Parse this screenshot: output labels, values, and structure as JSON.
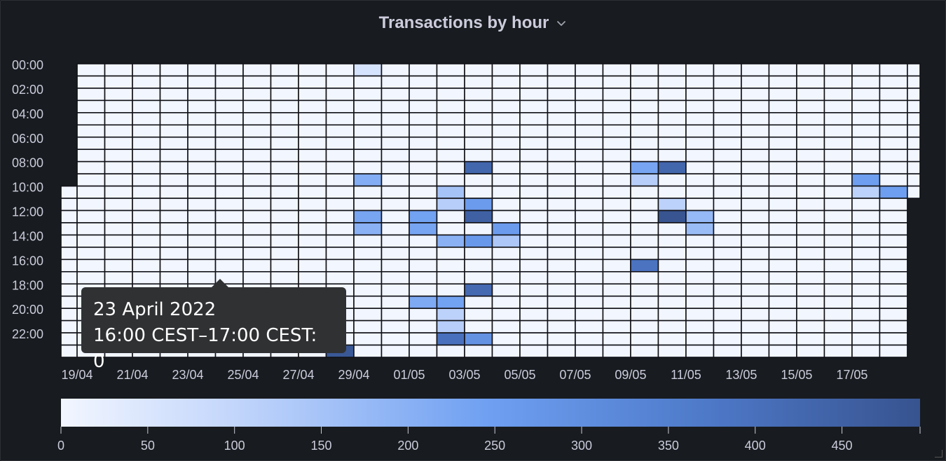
{
  "panel": {
    "title": "Transactions by hour",
    "menu_icon": "chevron-down-icon"
  },
  "tooltip": {
    "date": "23 April 2022",
    "range": "16:00 CEST–17:00 CEST: 0"
  },
  "colors": {
    "background": "#181b1f",
    "grid_line": "#111217",
    "scale_low": "#f2f6ff",
    "scale_mid": "#6e9ff1",
    "scale_high": "#37538f"
  },
  "chart_data": {
    "type": "heatmap",
    "title": "Transactions by hour",
    "y_tick_labels": [
      "00:00",
      "02:00",
      "04:00",
      "06:00",
      "08:00",
      "10:00",
      "12:00",
      "14:00",
      "16:00",
      "18:00",
      "20:00",
      "22:00"
    ],
    "x_tick_labels": [
      "19/04",
      "21/04",
      "23/04",
      "25/04",
      "27/04",
      "29/04",
      "01/05",
      "03/05",
      "05/05",
      "07/05",
      "09/05",
      "11/05",
      "13/05",
      "15/05",
      "17/05"
    ],
    "x_start": "2022-04-18T10:00",
    "x_end": "2022-05-19T11:00",
    "bucket": "1 hour per row, 1 day per column",
    "color_scale": {
      "min": 0,
      "max": 495,
      "ticks": [
        0,
        50,
        100,
        150,
        200,
        250,
        300,
        350,
        400,
        450
      ]
    },
    "nonzero_cells": [
      {
        "date": "2022-04-28",
        "hour": 23,
        "value": 480
      },
      {
        "date": "2022-04-29",
        "hour": 0,
        "value": 60
      },
      {
        "date": "2022-04-29",
        "hour": 9,
        "value": 210
      },
      {
        "date": "2022-04-29",
        "hour": 12,
        "value": 230
      },
      {
        "date": "2022-04-29",
        "hour": 13,
        "value": 200
      },
      {
        "date": "2022-05-01",
        "hour": 12,
        "value": 240
      },
      {
        "date": "2022-05-01",
        "hour": 13,
        "value": 230
      },
      {
        "date": "2022-05-01",
        "hour": 19,
        "value": 220
      },
      {
        "date": "2022-05-02",
        "hour": 10,
        "value": 150
      },
      {
        "date": "2022-05-02",
        "hour": 11,
        "value": 120
      },
      {
        "date": "2022-05-02",
        "hour": 14,
        "value": 200
      },
      {
        "date": "2022-05-02",
        "hour": 19,
        "value": 240
      },
      {
        "date": "2022-05-02",
        "hour": 20,
        "value": 110
      },
      {
        "date": "2022-05-02",
        "hour": 21,
        "value": 120
      },
      {
        "date": "2022-05-02",
        "hour": 22,
        "value": 400
      },
      {
        "date": "2022-05-03",
        "hour": 8,
        "value": 430
      },
      {
        "date": "2022-05-03",
        "hour": 11,
        "value": 260
      },
      {
        "date": "2022-05-03",
        "hour": 12,
        "value": 450
      },
      {
        "date": "2022-05-03",
        "hour": 14,
        "value": 270
      },
      {
        "date": "2022-05-03",
        "hour": 18,
        "value": 420
      },
      {
        "date": "2022-05-03",
        "hour": 22,
        "value": 290
      },
      {
        "date": "2022-05-04",
        "hour": 13,
        "value": 260
      },
      {
        "date": "2022-05-04",
        "hour": 14,
        "value": 140
      },
      {
        "date": "2022-05-09",
        "hour": 8,
        "value": 230
      },
      {
        "date": "2022-05-09",
        "hour": 9,
        "value": 120
      },
      {
        "date": "2022-05-09",
        "hour": 16,
        "value": 390
      },
      {
        "date": "2022-05-10",
        "hour": 8,
        "value": 430
      },
      {
        "date": "2022-05-10",
        "hour": 11,
        "value": 110
      },
      {
        "date": "2022-05-10",
        "hour": 12,
        "value": 490
      },
      {
        "date": "2022-05-11",
        "hour": 12,
        "value": 180
      },
      {
        "date": "2022-05-11",
        "hour": 13,
        "value": 170
      },
      {
        "date": "2022-05-17",
        "hour": 9,
        "value": 250
      },
      {
        "date": "2022-05-17",
        "hour": 10,
        "value": 110
      },
      {
        "date": "2022-05-18",
        "hour": 10,
        "value": 250
      }
    ]
  }
}
